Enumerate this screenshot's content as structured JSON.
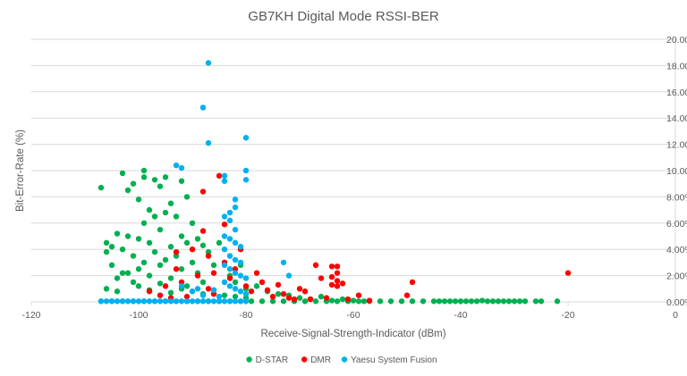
{
  "chart_data": {
    "type": "scatter",
    "title": "GB7KH Digital Mode RSSI-BER",
    "xlabel": "Receive-Signal-Strength-Indicator (dBm)",
    "ylabel": "Bit-Error-Rate (%)",
    "xlim": [
      -120,
      0
    ],
    "ylim": [
      0,
      20
    ],
    "x_ticks": [
      "-120",
      "-100",
      "-80",
      "-60",
      "-40",
      "-20",
      "0"
    ],
    "y_ticks": [
      "0.00%",
      "2.00%",
      "4.00%",
      "6.00%",
      "8.00%",
      "10.00%",
      "12.00%",
      "14.00%",
      "16.00%",
      "18.00%",
      "20.00%"
    ],
    "grid": "horizontal",
    "legend_position": "bottom",
    "series": [
      {
        "name": "D-STAR",
        "color": "#00b050",
        "points": [
          [
            -107,
            8.7
          ],
          [
            -106,
            4.5
          ],
          [
            -106,
            3.8
          ],
          [
            -105,
            4.2
          ],
          [
            -105,
            2.8
          ],
          [
            -104,
            0.8
          ],
          [
            -104,
            5.2
          ],
          [
            -103,
            9.8
          ],
          [
            -103,
            4.0
          ],
          [
            -103,
            2.2
          ],
          [
            -102,
            8.5
          ],
          [
            -102,
            5.0
          ],
          [
            -101,
            9.0
          ],
          [
            -101,
            3.5
          ],
          [
            -101,
            1.5
          ],
          [
            -100,
            7.8
          ],
          [
            -100,
            4.8
          ],
          [
            -100,
            2.5
          ],
          [
            -99,
            10.0
          ],
          [
            -99,
            9.5
          ],
          [
            -99,
            6.0
          ],
          [
            -99,
            3.0
          ],
          [
            -98,
            7.0
          ],
          [
            -98,
            4.5
          ],
          [
            -98,
            2.0
          ],
          [
            -97,
            9.3
          ],
          [
            -97,
            6.5
          ],
          [
            -97,
            3.8
          ],
          [
            -96,
            8.8
          ],
          [
            -96,
            5.5
          ],
          [
            -96,
            2.8
          ],
          [
            -95,
            9.5
          ],
          [
            -95,
            6.8
          ],
          [
            -95,
            3.2
          ],
          [
            -94,
            7.5
          ],
          [
            -94,
            4.2
          ],
          [
            -94,
            1.8
          ],
          [
            -93,
            6.5
          ],
          [
            -93,
            3.5
          ],
          [
            -92,
            9.2
          ],
          [
            -92,
            5.0
          ],
          [
            -92,
            2.5
          ],
          [
            -91,
            8.0
          ],
          [
            -91,
            4.5
          ],
          [
            -91,
            1.2
          ],
          [
            -90,
            6.0
          ],
          [
            -90,
            3.0
          ],
          [
            -89,
            4.8
          ],
          [
            -89,
            2.2
          ],
          [
            -88,
            4.3
          ],
          [
            -88,
            1.5
          ],
          [
            -87,
            3.8
          ],
          [
            -86,
            2.8
          ],
          [
            -85,
            4.5
          ],
          [
            -84,
            3.0
          ],
          [
            -83,
            2.0
          ],
          [
            -82,
            1.5
          ],
          [
            -81,
            2.8
          ],
          [
            -80,
            1.0
          ],
          [
            -78,
            1.2
          ],
          [
            -76,
            0.8
          ],
          [
            -74,
            0.6
          ],
          [
            -72,
            0.5
          ],
          [
            -70,
            0.3
          ],
          [
            -68,
            0.2
          ],
          [
            -66,
            0.4
          ],
          [
            -64,
            0.1
          ],
          [
            -62,
            0.2
          ],
          [
            -60,
            0.1
          ],
          [
            -58,
            0.05
          ],
          [
            -106,
            1.0
          ],
          [
            -104,
            1.8
          ],
          [
            -102,
            2.2
          ],
          [
            -100,
            1.2
          ],
          [
            -98,
            0.9
          ],
          [
            -96,
            1.4
          ],
          [
            -94,
            0.7
          ],
          [
            -92,
            1.0
          ],
          [
            -90,
            0.8
          ],
          [
            -88,
            0.6
          ],
          [
            -86,
            0.9
          ],
          [
            -84,
            0.5
          ],
          [
            -82,
            0.4
          ],
          [
            -80,
            0.3
          ],
          [
            -107,
            0.05
          ],
          [
            -105,
            0.05
          ],
          [
            -103,
            0.05
          ],
          [
            -101,
            0.05
          ],
          [
            -99,
            0.05
          ],
          [
            -97,
            0.05
          ],
          [
            -95,
            0.05
          ],
          [
            -93,
            0.05
          ],
          [
            -91,
            0.05
          ],
          [
            -89,
            0.05
          ],
          [
            -87,
            0.05
          ],
          [
            -85,
            0.05
          ],
          [
            -83,
            0.05
          ],
          [
            -81,
            0.05
          ],
          [
            -79,
            0.05
          ],
          [
            -77,
            0.05
          ],
          [
            -75,
            0.05
          ],
          [
            -73,
            0.05
          ],
          [
            -71,
            0.05
          ],
          [
            -69,
            0.05
          ],
          [
            -67,
            0.05
          ],
          [
            -65,
            0.05
          ],
          [
            -63,
            0.05
          ],
          [
            -61,
            0.05
          ],
          [
            -59,
            0.05
          ],
          [
            -57,
            0.05
          ],
          [
            -55,
            0.05
          ],
          [
            -53,
            0.05
          ],
          [
            -51,
            0.05
          ],
          [
            -49,
            0.05
          ],
          [
            -47,
            0.05
          ],
          [
            -45,
            0.05
          ],
          [
            -44,
            0.05
          ],
          [
            -43,
            0.05
          ],
          [
            -42,
            0.05
          ],
          [
            -41,
            0.05
          ],
          [
            -40,
            0.05
          ],
          [
            -39,
            0.05
          ],
          [
            -38,
            0.05
          ],
          [
            -37,
            0.05
          ],
          [
            -36,
            0.1
          ],
          [
            -35,
            0.05
          ],
          [
            -34,
            0.05
          ],
          [
            -33,
            0.05
          ],
          [
            -32,
            0.05
          ],
          [
            -31,
            0.05
          ],
          [
            -30,
            0.05
          ],
          [
            -29,
            0.05
          ],
          [
            -28,
            0.05
          ],
          [
            -26,
            0.05
          ],
          [
            -25,
            0.05
          ],
          [
            -22,
            0.05
          ]
        ]
      },
      {
        "name": "DMR",
        "color": "#ff0000",
        "points": [
          [
            -98,
            0.8
          ],
          [
            -96,
            0.5
          ],
          [
            -95,
            1.2
          ],
          [
            -94,
            0.3
          ],
          [
            -93,
            2.5
          ],
          [
            -93,
            3.8
          ],
          [
            -92,
            1.5
          ],
          [
            -91,
            0.4
          ],
          [
            -90,
            4.0
          ],
          [
            -89,
            2.0
          ],
          [
            -88,
            8.4
          ],
          [
            -88,
            5.4
          ],
          [
            -87,
            3.5
          ],
          [
            -87,
            1.0
          ],
          [
            -86,
            2.2
          ],
          [
            -86,
            0.6
          ],
          [
            -85,
            9.6
          ],
          [
            -84,
            5.9
          ],
          [
            -84,
            3.0
          ],
          [
            -83,
            1.8
          ],
          [
            -82,
            2.5
          ],
          [
            -81,
            4.0
          ],
          [
            -80,
            1.2
          ],
          [
            -79,
            0.8
          ],
          [
            -78,
            2.2
          ],
          [
            -77,
            1.5
          ],
          [
            -76,
            0.9
          ],
          [
            -75,
            0.4
          ],
          [
            -74,
            1.3
          ],
          [
            -73,
            0.6
          ],
          [
            -72,
            0.3
          ],
          [
            -71,
            0.2
          ],
          [
            -70,
            1.0
          ],
          [
            -69,
            0.8
          ],
          [
            -68,
            0.2
          ],
          [
            -67,
            2.8
          ],
          [
            -66,
            1.8
          ],
          [
            -65,
            0.3
          ],
          [
            -64,
            2.7
          ],
          [
            -64,
            1.9
          ],
          [
            -64,
            1.3
          ],
          [
            -63,
            2.7
          ],
          [
            -63,
            2.2
          ],
          [
            -63,
            1.6
          ],
          [
            -63,
            1.2
          ],
          [
            -62,
            1.4
          ],
          [
            -61,
            0.2
          ],
          [
            -59,
            0.5
          ],
          [
            -57,
            0.1
          ],
          [
            -50,
            0.5
          ],
          [
            -49,
            1.5
          ],
          [
            -20,
            2.2
          ]
        ]
      },
      {
        "name": "Yaesu System Fusion",
        "color": "#00b0f0",
        "points": [
          [
            -87,
            18.2
          ],
          [
            -88,
            14.8
          ],
          [
            -87,
            12.1
          ],
          [
            -80,
            12.5
          ],
          [
            -93,
            10.4
          ],
          [
            -92,
            10.2
          ],
          [
            -80,
            10.0
          ],
          [
            -84,
            9.6
          ],
          [
            -80,
            9.3
          ],
          [
            -84,
            9.2
          ],
          [
            -82,
            7.8
          ],
          [
            -82,
            7.2
          ],
          [
            -83,
            6.8
          ],
          [
            -84,
            6.5
          ],
          [
            -83,
            6.2
          ],
          [
            -82,
            5.5
          ],
          [
            -84,
            5.0
          ],
          [
            -83,
            4.8
          ],
          [
            -82,
            4.5
          ],
          [
            -81,
            4.2
          ],
          [
            -84,
            4.0
          ],
          [
            -83,
            3.5
          ],
          [
            -82,
            3.2
          ],
          [
            -81,
            3.0
          ],
          [
            -84,
            2.8
          ],
          [
            -83,
            2.5
          ],
          [
            -82,
            2.2
          ],
          [
            -81,
            2.0
          ],
          [
            -80,
            1.8
          ],
          [
            -84,
            1.5
          ],
          [
            -83,
            1.2
          ],
          [
            -82,
            1.0
          ],
          [
            -81,
            0.8
          ],
          [
            -80,
            0.6
          ],
          [
            -73,
            3.0
          ],
          [
            -72,
            2.0
          ],
          [
            -92,
            1.2
          ],
          [
            -90,
            0.8
          ],
          [
            -89,
            1.0
          ],
          [
            -88,
            0.5
          ],
          [
            -86,
            0.9
          ],
          [
            -85,
            0.4
          ],
          [
            -107,
            0.05
          ],
          [
            -106,
            0.05
          ],
          [
            -105,
            0.05
          ],
          [
            -104,
            0.05
          ],
          [
            -103,
            0.05
          ],
          [
            -102,
            0.05
          ],
          [
            -101,
            0.05
          ],
          [
            -100,
            0.05
          ],
          [
            -99,
            0.05
          ],
          [
            -98,
            0.05
          ],
          [
            -97,
            0.05
          ],
          [
            -96,
            0.05
          ],
          [
            -95,
            0.05
          ],
          [
            -94,
            0.05
          ],
          [
            -93,
            0.05
          ],
          [
            -92,
            0.05
          ],
          [
            -91,
            0.05
          ],
          [
            -90,
            0.05
          ],
          [
            -89,
            0.05
          ],
          [
            -88,
            0.05
          ],
          [
            -87,
            0.05
          ],
          [
            -86,
            0.05
          ],
          [
            -85,
            0.05
          ],
          [
            -84,
            0.05
          ],
          [
            -83,
            0.05
          ],
          [
            -82,
            0.05
          ],
          [
            -81,
            0.05
          ],
          [
            -80,
            0.05
          ]
        ]
      }
    ]
  }
}
